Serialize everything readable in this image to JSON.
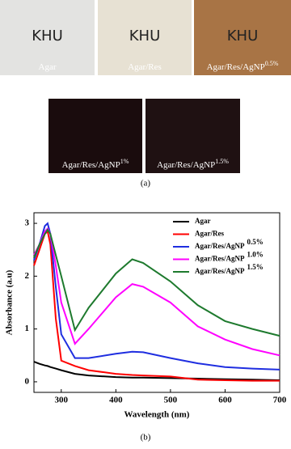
{
  "figure_a": {
    "label": "(a)",
    "photos": [
      {
        "caption": "Agar",
        "mark": "KHU"
      },
      {
        "caption": "Agar/Res",
        "mark": "KHU"
      },
      {
        "caption": "Agar/Res/AgNP",
        "superscript": "0.5%",
        "mark": "KHU"
      },
      {
        "caption": "Agar/Res/AgNP",
        "superscript": "1%"
      },
      {
        "caption": "Agar/Res/AgNP",
        "superscript": "1.5%"
      }
    ]
  },
  "chart_data": {
    "type": "line",
    "x_label": "Wavelength (nm)",
    "y_label": "Absorbance (a.u)",
    "x": [
      250,
      260,
      270,
      275,
      280,
      290,
      300,
      325,
      350,
      400,
      430,
      450,
      500,
      550,
      600,
      650,
      700
    ],
    "xlim": [
      250,
      700
    ],
    "xticks": [
      300,
      400,
      500,
      600,
      700
    ],
    "ylim": [
      -0.2,
      3.2
    ],
    "yticks": [
      0,
      1,
      2,
      3
    ],
    "legend": "upper right",
    "series": [
      {
        "name": "Agar",
        "color": "#000000",
        "values": [
          0.38,
          0.34,
          0.31,
          0.3,
          0.28,
          0.25,
          0.22,
          0.15,
          0.12,
          0.09,
          0.08,
          0.08,
          0.07,
          0.06,
          0.05,
          0.04,
          0.03
        ]
      },
      {
        "name": "Agar/Res",
        "color": "#ff0000",
        "values": [
          2.2,
          2.5,
          2.8,
          2.85,
          2.6,
          1.2,
          0.4,
          0.3,
          0.22,
          0.15,
          0.13,
          0.12,
          0.1,
          0.04,
          0.03,
          0.02,
          0.02
        ]
      },
      {
        "name": "Agar/Res/AgNP",
        "superscript": "0.5%",
        "color": "#1f2ee0",
        "values": [
          2.3,
          2.6,
          2.95,
          3.0,
          2.8,
          1.8,
          0.9,
          0.45,
          0.45,
          0.53,
          0.57,
          0.56,
          0.45,
          0.35,
          0.28,
          0.25,
          0.23
        ]
      },
      {
        "name": "Agar/Res/AgNP",
        "superscript": "1.0%",
        "color": "#ff00ff",
        "values": [
          2.4,
          2.6,
          2.85,
          2.9,
          2.8,
          2.2,
          1.5,
          0.72,
          1.0,
          1.6,
          1.85,
          1.8,
          1.5,
          1.05,
          0.8,
          0.62,
          0.5
        ]
      },
      {
        "name": "Agar/Res/AgNP",
        "superscript": "1.5%",
        "color": "#1e7a2e",
        "values": [
          2.35,
          2.6,
          2.8,
          2.88,
          2.8,
          2.4,
          2.0,
          0.98,
          1.4,
          2.05,
          2.32,
          2.25,
          1.9,
          1.45,
          1.15,
          1.0,
          0.87
        ]
      }
    ]
  },
  "figure_b": {
    "label": "(b)"
  }
}
